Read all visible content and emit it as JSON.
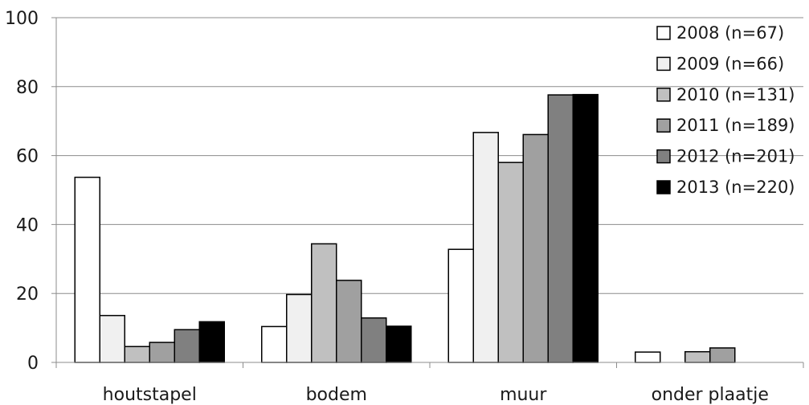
{
  "chart_data": {
    "type": "bar",
    "categories": [
      "houtstapel",
      "bodem",
      "muur",
      "onder plaatje"
    ],
    "ylim": [
      0,
      100
    ],
    "yticks": [
      0,
      20,
      40,
      60,
      80,
      100
    ],
    "grid": true,
    "legend_position": "top-right",
    "series": [
      {
        "name": "2008 (n=67)",
        "color": "#ffffff",
        "values": [
          53.7,
          10.4,
          32.8,
          3.0
        ]
      },
      {
        "name": "2009 (n=66)",
        "color": "#f0f0f0",
        "values": [
          13.6,
          19.7,
          66.7,
          0
        ]
      },
      {
        "name": "2010 (n=131)",
        "color": "#c0c0c0",
        "values": [
          4.6,
          34.4,
          58.0,
          3.1
        ]
      },
      {
        "name": "2011 (n=189)",
        "color": "#a0a0a0",
        "values": [
          5.8,
          23.8,
          66.1,
          4.2
        ]
      },
      {
        "name": "2012 (n=201)",
        "color": "#808080",
        "values": [
          9.5,
          12.9,
          77.6,
          0
        ]
      },
      {
        "name": "2013 (n=220)",
        "color": "#000000",
        "values": [
          11.8,
          10.5,
          77.7,
          0
        ]
      }
    ]
  }
}
